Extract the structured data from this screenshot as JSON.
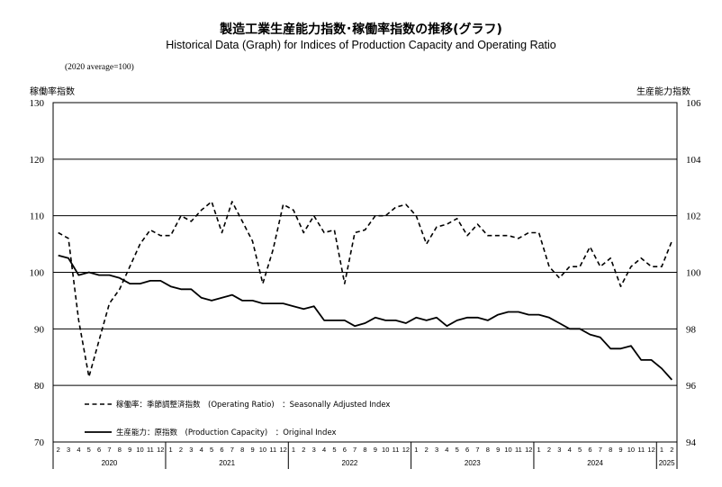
{
  "header": {
    "title_jp": "製造工業生産能力指数･稼働率指数の推移(グラフ)",
    "title_en": "Historical Data (Graph) for Indices of Production Capacity and Operating Ratio",
    "base_note": "(2020 average=100)",
    "left_axis_label": "稼働率指数",
    "right_axis_label": "生産能力指数"
  },
  "chart_data": {
    "type": "line",
    "left_axis": {
      "min": 70,
      "max": 130,
      "ticks": [
        "130",
        "120",
        "110",
        "100",
        "90",
        "80",
        "70"
      ],
      "tick_values": [
        130,
        120,
        110,
        100,
        90,
        80,
        70
      ]
    },
    "right_axis": {
      "min": 94,
      "max": 106,
      "ticks": [
        "106",
        "104",
        "102",
        "100",
        "98",
        "96",
        "94"
      ],
      "tick_values": [
        106,
        104,
        102,
        100,
        98,
        96,
        94
      ]
    },
    "grid": true,
    "months": [
      "2",
      "3",
      "4",
      "5",
      "6",
      "7",
      "8",
      "9",
      "10",
      "11",
      "12",
      "1",
      "2",
      "3",
      "4",
      "5",
      "6",
      "7",
      "8",
      "9",
      "10",
      "11",
      "12",
      "1",
      "2",
      "3",
      "4",
      "5",
      "6",
      "7",
      "8",
      "9",
      "10",
      "11",
      "12",
      "1",
      "2",
      "3",
      "4",
      "5",
      "6",
      "7",
      "8",
      "9",
      "10",
      "11",
      "12",
      "1",
      "2",
      "3",
      "4",
      "5",
      "6",
      "7",
      "8",
      "9",
      "10",
      "11",
      "12",
      "1",
      "2"
    ],
    "years": [
      {
        "label": "2020",
        "start": 0,
        "end": 10
      },
      {
        "label": "2021",
        "start": 11,
        "end": 22
      },
      {
        "label": "2022",
        "start": 23,
        "end": 34
      },
      {
        "label": "2023",
        "start": 35,
        "end": 46
      },
      {
        "label": "2024",
        "start": 47,
        "end": 58
      },
      {
        "label": "2025",
        "start": 59,
        "end": 60
      }
    ],
    "series": [
      {
        "legend": "稼働率：季節調整済指数　(Operating Ratio)　：Seasonally Adjusted Index",
        "style": "dashed",
        "axis": "left",
        "values": [
          107.0,
          106.0,
          91.5,
          81.5,
          88.0,
          94.5,
          97.0,
          101.0,
          105.0,
          107.5,
          106.5,
          106.5,
          110.0,
          109.0,
          111.0,
          112.5,
          107.0,
          112.5,
          109.0,
          105.5,
          98.0,
          104.0,
          112.0,
          111.0,
          107.0,
          110.0,
          107.0,
          107.5,
          98.0,
          107.0,
          107.5,
          110.0,
          110.0,
          111.5,
          112.0,
          110.0,
          105.0,
          108.0,
          108.5,
          109.5,
          106.5,
          108.5,
          106.5,
          106.5,
          106.5,
          106.0,
          107.0,
          107.0,
          101.0,
          99.0,
          101.0,
          101.0,
          104.5,
          101.0,
          102.5,
          97.5,
          101.0,
          102.5,
          101.0,
          101.0,
          105.5
        ]
      },
      {
        "legend": "生産能力：原指数　(Production Capacity)　：Original Index",
        "style": "solid",
        "axis": "right",
        "values": [
          100.6,
          100.5,
          99.9,
          100.0,
          99.9,
          99.9,
          99.8,
          99.6,
          99.6,
          99.7,
          99.7,
          99.5,
          99.4,
          99.4,
          99.1,
          99.0,
          99.1,
          99.2,
          99.0,
          99.0,
          98.9,
          98.9,
          98.9,
          98.8,
          98.7,
          98.8,
          98.3,
          98.3,
          98.3,
          98.1,
          98.2,
          98.4,
          98.3,
          98.3,
          98.2,
          98.4,
          98.3,
          98.4,
          98.1,
          98.3,
          98.4,
          98.4,
          98.3,
          98.5,
          98.6,
          98.6,
          98.5,
          98.5,
          98.4,
          98.2,
          98.0,
          98.0,
          97.8,
          97.7,
          97.3,
          97.3,
          97.4,
          96.9,
          96.9,
          96.6,
          96.2
        ]
      }
    ]
  }
}
